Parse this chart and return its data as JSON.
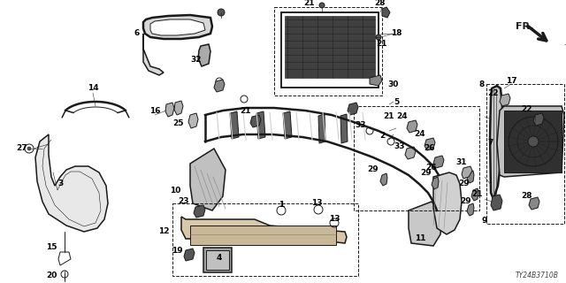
{
  "background_color": "#ffffff",
  "line_color": "#1a1a1a",
  "label_color": "#000000",
  "diagram_code": "TY24B3710B",
  "font_size_labels": 6.5,
  "font_size_code": 5.5,
  "font_size_fr": 8,
  "fig_w": 6.4,
  "fig_h": 3.2,
  "dpi": 100
}
